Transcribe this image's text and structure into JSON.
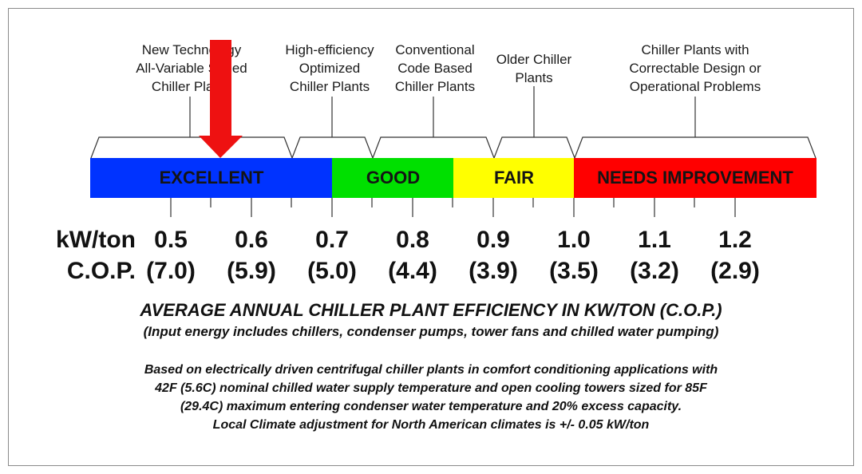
{
  "categories": [
    {
      "label": "New Technology\nAll-Variable Speed\nChiller Plants"
    },
    {
      "label": "High-efficiency\nOptimized\nChiller Plants"
    },
    {
      "label": "Conventional\nCode Based\nChiller Plants"
    },
    {
      "label": "Older Chiller\nPlants"
    },
    {
      "label": "Chiller Plants with\nCorrectable Design or\nOperational Problems"
    }
  ],
  "bands": [
    {
      "label": "EXCELLENT",
      "color": "#0033ff"
    },
    {
      "label": "GOOD",
      "color": "#00e000"
    },
    {
      "label": "FAIR",
      "color": "#ffff00"
    },
    {
      "label": "NEEDS IMPROVEMENT",
      "color": "#ff0000"
    }
  ],
  "arrow_color": "#ee1111",
  "scale": {
    "kw_label": "kW/ton",
    "cop_label": "C.O.P.",
    "kw_values": [
      "0.5",
      "0.6",
      "0.7",
      "0.8",
      "0.9",
      "1.0",
      "1.1",
      "1.2"
    ],
    "cop_values": [
      "(7.0)",
      "(5.9)",
      "(5.0)",
      "(4.4)",
      "(3.9)",
      "(3.5)",
      "(3.2)",
      "(2.9)"
    ]
  },
  "title": "AVERAGE ANNUAL CHILLER PLANT EFFICIENCY IN KW/TON (C.O.P.)",
  "subtitle": "(Input energy includes chillers, condenser pumps, tower fans and chilled water pumping)",
  "notes": [
    "Based on electrically driven centrifugal chiller plants in comfort conditioning applications with",
    "42F (5.6C) nominal chilled water supply temperature and open cooling towers sized for 85F",
    "(29.4C) maximum entering condenser water temperature and 20% excess capacity.",
    "Local Climate adjustment for North American climates is +/- 0.05 kW/ton"
  ]
}
